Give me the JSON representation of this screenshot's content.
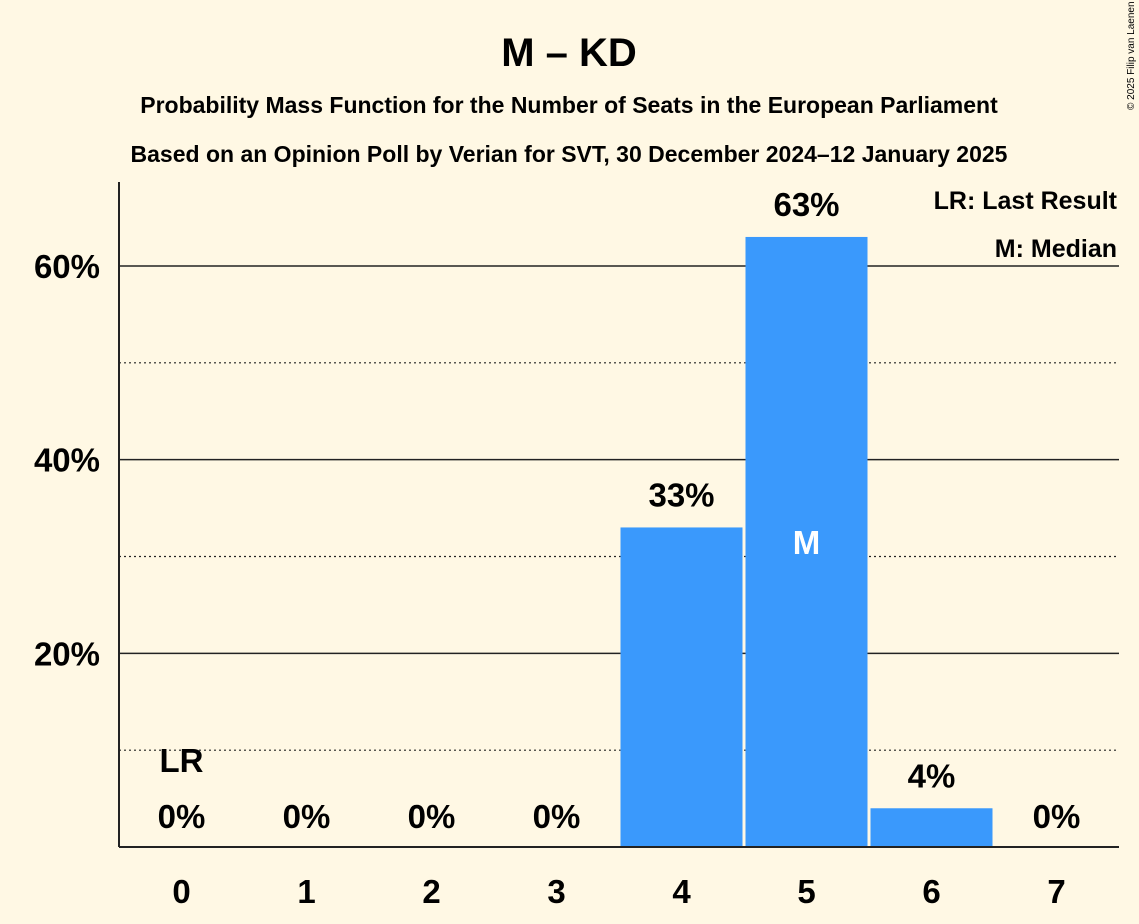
{
  "copyright": "© 2025 Filip van Laenen",
  "chart_data": {
    "type": "bar",
    "title": "M – KD",
    "subtitle": "Probability Mass Function for the Number of Seats in the European Parliament",
    "subtitle2": "Based on an Opinion Poll by Verian for SVT, 30 December 2024–12 January 2025",
    "categories": [
      "0",
      "1",
      "2",
      "3",
      "4",
      "5",
      "6",
      "7"
    ],
    "values": [
      0,
      0,
      0,
      0,
      33,
      63,
      4,
      0
    ],
    "value_labels": [
      "0%",
      "0%",
      "0%",
      "0%",
      "33%",
      "63%",
      "4%",
      "0%"
    ],
    "ylim": [
      0,
      68
    ],
    "yticks": [
      20,
      40,
      60
    ],
    "ytick_labels": [
      "20%",
      "40%",
      "60%"
    ],
    "minor_gridlines": [
      10,
      30,
      50
    ],
    "bar_color": "#3a99fc",
    "last_result_index": 0,
    "last_result_label": "LR",
    "median_index": 5,
    "median_label": "M",
    "legend": [
      "LR: Last Result",
      "M: Median"
    ],
    "legend_position": "top-right"
  }
}
